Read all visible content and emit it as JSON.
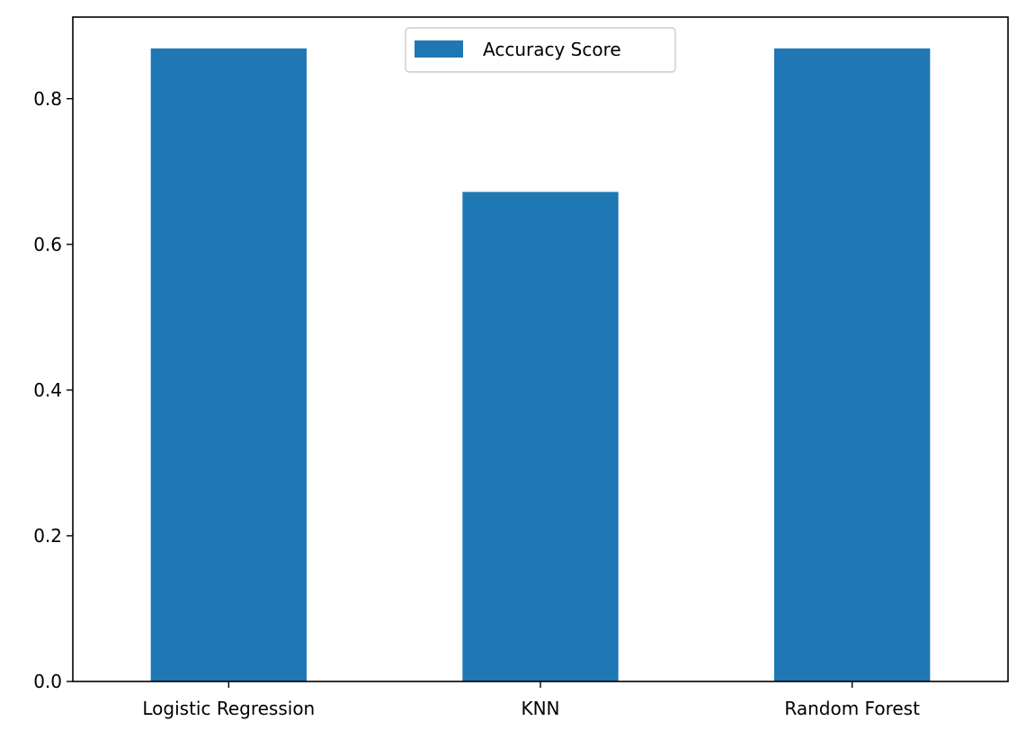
{
  "chart_data": {
    "type": "bar",
    "title": "",
    "xlabel": "",
    "ylabel": "",
    "categories": [
      "Logistic Regression",
      "KNN",
      "Random Forest"
    ],
    "series": [
      {
        "name": "Accuracy Score",
        "values": [
          0.869,
          0.672,
          0.869
        ]
      }
    ],
    "ylim": [
      0,
      0.912
    ],
    "yticks": [
      0.0,
      0.2,
      0.4,
      0.6,
      0.8
    ],
    "ytick_labels": [
      "0.0",
      "0.2",
      "0.4",
      "0.6",
      "0.8"
    ],
    "grid": false,
    "legend_position": "top-center",
    "bar_color": "#1f77b4"
  }
}
